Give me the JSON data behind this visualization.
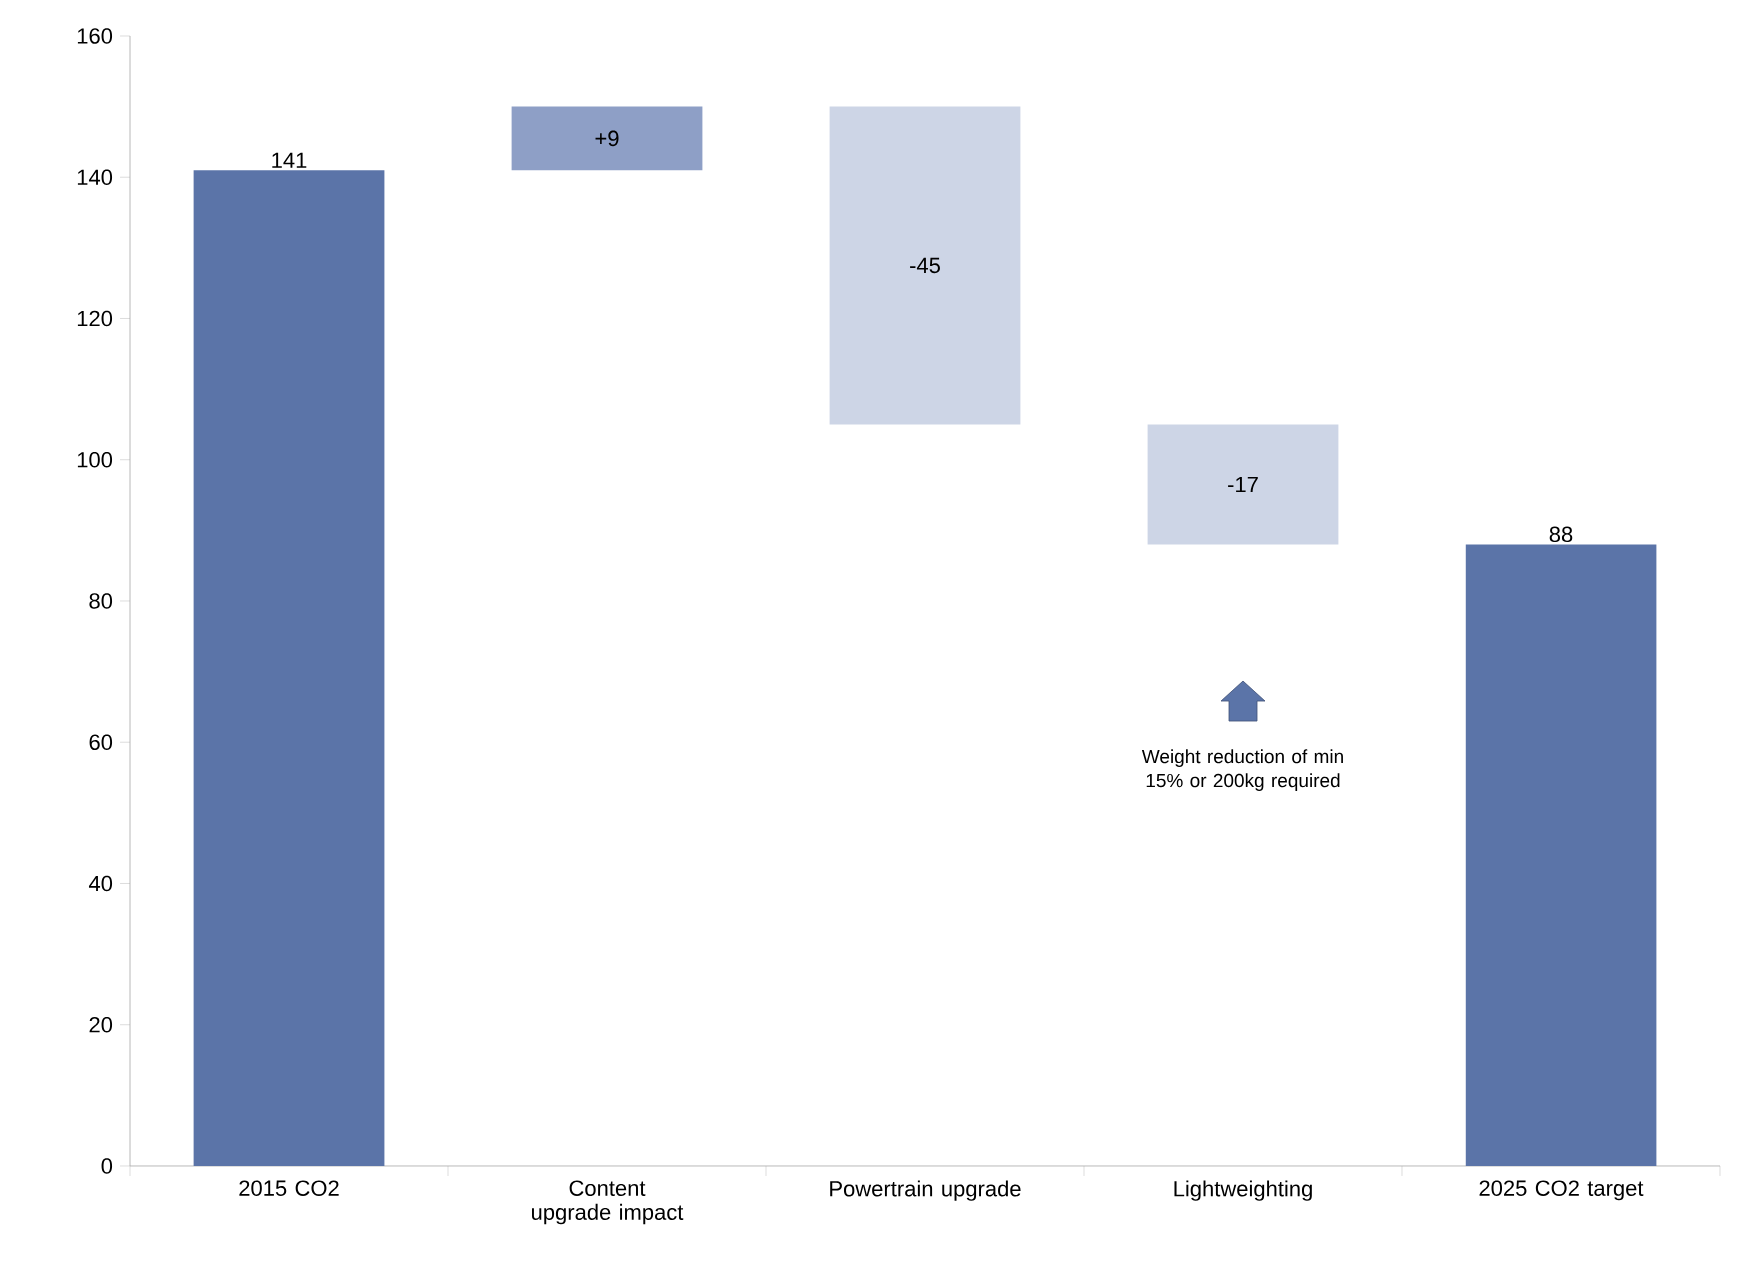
{
  "chart_data": {
    "type": "bar",
    "categories": [
      "2015 CO2",
      "Content upgrade impact",
      "Powertrain upgrade",
      "Lightweighting",
      "2025 CO2 target"
    ],
    "values": [
      141,
      9,
      -45,
      -17,
      88
    ],
    "base": [
      0,
      141,
      150,
      105,
      0
    ],
    "colors": [
      "#5b74a8",
      "#8e9fc6",
      "#cdd5e6",
      "#cdd5e6",
      "#5b74a8"
    ],
    "value_labels": [
      "141",
      "+9",
      "-45",
      "-17",
      "88"
    ],
    "ylim": [
      0,
      160
    ],
    "yticks": [
      0,
      20,
      40,
      60,
      80,
      100,
      120,
      140,
      160
    ],
    "grid": false,
    "annotations": [
      "Weight reduction of min 15% or 200kg required"
    ]
  }
}
